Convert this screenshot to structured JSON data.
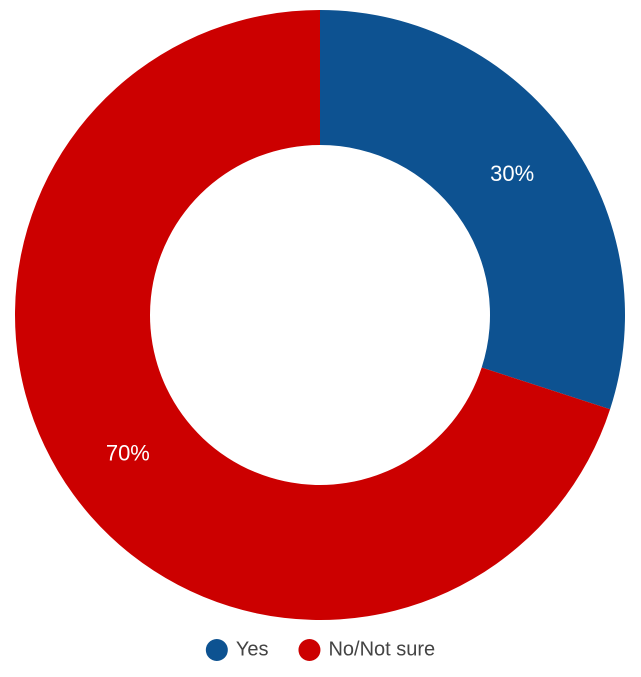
{
  "chart_data": {
    "type": "pie",
    "categories": [
      "Yes",
      "No/Not sure"
    ],
    "values": [
      30,
      70
    ],
    "value_labels": [
      "30%",
      "70%"
    ],
    "colors": [
      "#0d5291",
      "#cc0000"
    ]
  }
}
